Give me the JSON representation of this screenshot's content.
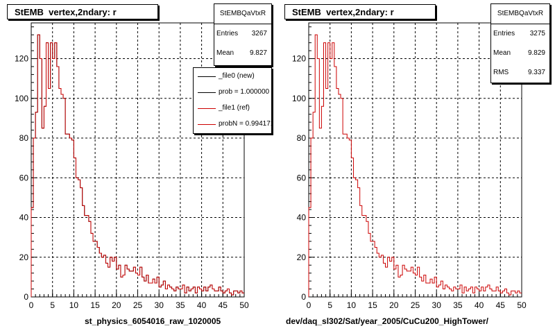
{
  "colors": {
    "new": "#000000",
    "ref": "#cc0000",
    "grid": "#000000"
  },
  "footer_text": "",
  "chart_data": [
    {
      "type": "histogram",
      "title": "StEMB  vertex,2ndary: r",
      "xlabel": "st_physics_6054016_raw_1020005",
      "ylabel": "",
      "xlim": [
        0,
        50
      ],
      "ylim": [
        0,
        138
      ],
      "xticks": [
        "0",
        "5",
        "10",
        "15",
        "20",
        "25",
        "30",
        "35",
        "40",
        "45",
        "50"
      ],
      "yticks": [
        "0",
        "20",
        "40",
        "60",
        "80",
        "100",
        "120"
      ],
      "grid": true,
      "bin_width": 0.5,
      "stats": {
        "name": "StEMBQaVtxR",
        "rows": [
          {
            "key": "Entries",
            "value": "3267"
          },
          {
            "key": "Mean",
            "value": "9.827"
          }
        ]
      },
      "legend": {
        "placement": "top-right",
        "entries": [
          {
            "label": "_file0 (new)",
            "color": "#000000"
          },
          {
            "label": "prob = 1.000000",
            "color": "#000000"
          },
          {
            "label": "_file1 (ref)",
            "color": "#cc0000"
          },
          {
            "label": "probN = 0.994171",
            "color": "#cc0000"
          }
        ]
      },
      "series": [
        {
          "name": "_file0 (new)",
          "color": "#000000",
          "values": [
            45,
            80,
            93,
            132,
            120,
            85,
            96,
            128,
            105,
            128,
            120,
            128,
            116,
            105,
            102,
            100,
            82,
            82,
            80,
            79,
            70,
            60,
            59,
            55,
            46,
            41,
            41,
            38,
            32,
            28,
            28,
            25,
            22,
            20,
            21,
            17,
            15,
            20,
            18,
            20,
            14,
            16,
            10,
            11,
            16,
            14,
            13,
            13,
            15,
            12,
            11,
            15,
            10,
            8,
            11,
            7,
            7,
            9,
            7,
            10,
            5,
            6,
            8,
            4,
            6,
            5,
            4,
            3,
            5,
            4,
            4,
            6,
            2,
            5,
            3,
            4,
            5,
            2,
            5,
            4,
            3,
            5,
            3,
            5,
            6,
            4,
            3,
            3,
            5,
            3,
            2,
            3,
            4,
            2,
            1,
            3,
            3,
            2,
            3,
            2
          ]
        },
        {
          "name": "_file1 (ref)",
          "color": "#cc0000",
          "values": [
            45,
            80,
            93,
            132,
            120,
            85,
            96,
            128,
            105,
            128,
            120,
            128,
            116,
            105,
            102,
            100,
            82,
            82,
            80,
            79,
            70,
            60,
            59,
            55,
            46,
            41,
            41,
            38,
            32,
            28,
            28,
            25,
            22,
            20,
            21,
            17,
            15,
            20,
            18,
            20,
            14,
            16,
            10,
            11,
            16,
            14,
            13,
            13,
            15,
            12,
            11,
            15,
            10,
            8,
            11,
            7,
            7,
            9,
            7,
            10,
            5,
            6,
            8,
            4,
            6,
            5,
            4,
            3,
            5,
            4,
            4,
            6,
            2,
            5,
            3,
            4,
            5,
            2,
            5,
            4,
            3,
            5,
            3,
            5,
            6,
            4,
            3,
            3,
            5,
            3,
            2,
            3,
            4,
            2,
            1,
            3,
            3,
            2,
            3,
            2
          ]
        }
      ]
    },
    {
      "type": "histogram",
      "title": "StEMB  vertex,2ndary: r",
      "xlabel": "dev/daq_sl302/Sat/year_2005/CuCu200_HighTower/",
      "ylabel": "",
      "xlim": [
        0,
        50
      ],
      "ylim": [
        0,
        138
      ],
      "xticks": [
        "0",
        "5",
        "10",
        "15",
        "20",
        "25",
        "30",
        "35",
        "40",
        "45",
        "50"
      ],
      "yticks": [
        "0",
        "20",
        "40",
        "60",
        "80",
        "100",
        "120"
      ],
      "grid": true,
      "bin_width": 0.5,
      "stats": {
        "name": "StEMBQaVtxR",
        "rows": [
          {
            "key": "Entries",
            "value": "3275"
          },
          {
            "key": "Mean",
            "value": "9.829"
          },
          {
            "key": "RMS",
            "value": "9.337"
          }
        ]
      },
      "series": [
        {
          "name": "_file1 (ref)",
          "color": "#cc0000",
          "values": [
            45,
            80,
            93,
            132,
            120,
            85,
            96,
            128,
            105,
            128,
            120,
            128,
            116,
            105,
            102,
            100,
            82,
            82,
            80,
            79,
            70,
            60,
            59,
            55,
            46,
            41,
            41,
            38,
            32,
            28,
            28,
            25,
            22,
            20,
            21,
            17,
            15,
            20,
            18,
            20,
            14,
            16,
            10,
            11,
            16,
            14,
            13,
            13,
            15,
            12,
            11,
            15,
            10,
            8,
            11,
            7,
            7,
            9,
            7,
            10,
            5,
            6,
            8,
            4,
            6,
            5,
            4,
            3,
            5,
            4,
            4,
            6,
            2,
            5,
            3,
            4,
            5,
            2,
            5,
            4,
            3,
            5,
            3,
            5,
            6,
            4,
            3,
            3,
            5,
            3,
            2,
            3,
            4,
            2,
            1,
            3,
            3,
            2,
            3,
            2
          ]
        }
      ]
    }
  ]
}
